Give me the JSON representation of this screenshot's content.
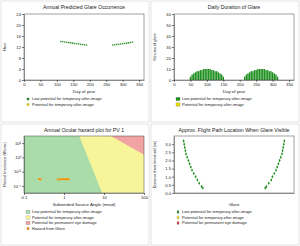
{
  "chart_data": [
    {
      "type": "scatter",
      "title": "Annual Predicted Glare Occurrence",
      "x_label": "Day of year",
      "y_label": "Hour",
      "xlim": [
        0,
        365
      ],
      "xticks": [
        0,
        50,
        100,
        150,
        200,
        250,
        300,
        350
      ],
      "ylim": [
        0,
        24
      ],
      "yticks": [
        0,
        4,
        8,
        12,
        16,
        20,
        24
      ],
      "marker": "circle",
      "series": [
        {
          "name": "Low potential for temporary after-image",
          "color": "#1f8f1f",
          "x": [
            112,
            118,
            124,
            130,
            136,
            142,
            148,
            154,
            160,
            166,
            172,
            178,
            184,
            190,
            270,
            276,
            282,
            288,
            294,
            300,
            306,
            312,
            318,
            324,
            330
          ],
          "values": [
            14.0,
            13.9,
            13.8,
            13.7,
            13.6,
            13.5,
            13.4,
            13.3,
            13.2,
            13.1,
            13.0,
            12.9,
            12.8,
            12.7,
            12.7,
            12.8,
            12.9,
            13.0,
            13.1,
            13.2,
            13.3,
            13.4,
            13.5,
            13.65,
            13.8
          ]
        },
        {
          "name": "Potential for temporary after-image",
          "color": "#e6d600",
          "x": [],
          "values": []
        }
      ]
    },
    {
      "type": "bar",
      "title": "Daily Duration of Glare",
      "x_label": "Day of year",
      "y_label": "Minutes of glare",
      "xlim": [
        0,
        365
      ],
      "xticks": [
        0,
        50,
        100,
        150,
        200,
        250,
        300,
        350
      ],
      "ylim": [
        0,
        60
      ],
      "yticks": [
        0,
        10,
        20,
        30,
        40,
        50,
        60
      ],
      "series": [
        {
          "name": "Low potential for temporary after-image",
          "color": "#1f8f1f",
          "x": [
            50,
            55,
            60,
            65,
            70,
            75,
            80,
            85,
            90,
            95,
            100,
            105,
            110,
            115,
            120,
            125,
            130,
            135,
            140,
            145,
            150,
            215,
            220,
            225,
            230,
            235,
            240,
            245,
            250,
            255,
            260,
            265,
            270,
            275,
            280,
            285,
            290,
            295,
            300,
            305,
            310,
            315
          ],
          "values": [
            3,
            5,
            6,
            7,
            8,
            8,
            9,
            9,
            10,
            10,
            10,
            10,
            10,
            9,
            9,
            8,
            8,
            7,
            6,
            5,
            3,
            3,
            5,
            6,
            7,
            8,
            8,
            9,
            9,
            10,
            10,
            10,
            10,
            10,
            9,
            9,
            8,
            8,
            7,
            6,
            5,
            3
          ]
        },
        {
          "name": "Potential for temporary after-image",
          "color": "#e6d600",
          "x": [],
          "values": []
        }
      ]
    },
    {
      "type": "scatter",
      "title": "Annual Ocular hazard plot for PV 1",
      "x_label": "Subtended Source Angle (mrad)",
      "y_label": "Retinal Irradiance (W/cm²)",
      "log": true,
      "marker": "square",
      "xlim": [
        0.1,
        100
      ],
      "xticks": [
        0.1,
        1,
        10,
        100
      ],
      "ylim": [
        1e-05,
        1000
      ],
      "yticks": [
        {
          "value": 0.0001,
          "label": "10⁻⁴"
        },
        {
          "value": 0.01,
          "label": "10⁻²"
        },
        {
          "value": 1,
          "label": "10⁰"
        },
        {
          "value": 100,
          "label": "10²"
        }
      ],
      "series": [
        {
          "name": "Low potential for temporary after-image",
          "type": "area",
          "color": "#a9dca9",
          "x": [
            0.1,
            100,
            100,
            0.1
          ],
          "values": [
            1e-05,
            1e-05,
            1000,
            1000
          ]
        },
        {
          "name": "Potential for temporary after-image",
          "type": "area",
          "color": "#f6f59a",
          "x": [
            2.4,
            100,
            100,
            9
          ],
          "values": [
            1000,
            1000,
            1e-05,
            1e-05
          ]
        },
        {
          "name": "Potential for permanent eye damage",
          "type": "area",
          "color": "#f2a3a3",
          "x": [
            15,
            100,
            100
          ],
          "values": [
            1000,
            1000,
            2.3
          ]
        },
        {
          "name": "Hazard from Glare",
          "color": "#ff8c00",
          "x": [
            0.24,
            0.26,
            0.7,
            0.8,
            0.9,
            1.0,
            1.1,
            1.2,
            1.3
          ],
          "values": [
            0.0009,
            0.0008,
            0.0008,
            0.0008,
            0.0009,
            0.0009,
            0.0008,
            0.0009,
            0.0008
          ]
        }
      ]
    },
    {
      "type": "scatter",
      "title": "Approx. Flight Path Location When Glare Visible",
      "x_label": "Glare",
      "y_label": "Distance from threshold (mi)",
      "tick_labels": "y",
      "marker": "diamond",
      "xlim": [
        0,
        100
      ],
      "ylim": [
        0,
        3.5
      ],
      "yticks": [
        {
          "value": 0,
          "label": "0.0"
        },
        0.5,
        {
          "value": 1,
          "label": "1.0"
        },
        1.5,
        {
          "value": 2,
          "label": "2.0"
        },
        2.5,
        {
          "value": 3,
          "label": "3.0"
        }
      ],
      "series": [
        {
          "name": "Low potential for temporary after-image",
          "color": "#1f8f1f",
          "x": [
            8,
            8.5,
            9,
            9.5,
            10,
            11,
            12,
            13,
            14,
            15,
            16.5,
            18,
            19.5,
            21,
            23,
            24,
            76,
            77,
            79,
            81,
            82,
            83.5,
            85,
            86,
            87,
            88,
            89,
            90,
            90.5,
            91,
            91.5,
            92
          ],
          "values": [
            3.2,
            3.0,
            2.8,
            2.6,
            2.4,
            2.2,
            2.0,
            1.8,
            1.6,
            1.4,
            1.2,
            1.0,
            0.8,
            0.6,
            0.4,
            0.3,
            0.3,
            0.4,
            0.6,
            0.8,
            1.0,
            1.2,
            1.4,
            1.6,
            1.8,
            2.0,
            2.2,
            2.4,
            2.6,
            2.8,
            3.0,
            3.2
          ]
        },
        {
          "name": "Potential for temporary after-image",
          "color": "#e6d600",
          "x": [],
          "values": []
        },
        {
          "name": "Potential for permanent eye damage",
          "color": "#d62728",
          "x": [],
          "values": []
        }
      ]
    }
  ]
}
